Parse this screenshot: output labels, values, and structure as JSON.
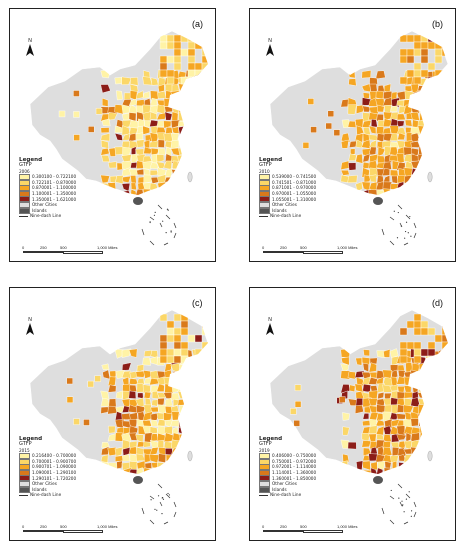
{
  "colors": {
    "class1": "#fff3a6",
    "class2": "#fbd768",
    "class3": "#f5a623",
    "class4": "#d9791b",
    "class5": "#8c1d18",
    "other": "#dedede",
    "islands": "#555555",
    "border": "#ffffff"
  },
  "north_label": "N",
  "other_label": "Other Cities",
  "islands_label": "Islands",
  "line_label": "Nine-dash Line",
  "scale_ticks": [
    "0",
    "250",
    "500",
    "1,000 Miles"
  ],
  "panels": [
    {
      "label": "(a)",
      "legend_title": "Legend",
      "legend_sub": "GTFP",
      "year": "2006",
      "classes": [
        "0.300100 - 0.722100",
        "0.722101 - 0.870000",
        "0.870001 - 1.100000",
        "1.100001 - 1.350000",
        "1.350001 - 1.621000"
      ]
    },
    {
      "label": "(b)",
      "legend_title": "Legend",
      "legend_sub": "GTFP",
      "year": "2010",
      "classes": [
        "0.539000 - 0.741500",
        "0.741501 - 0.871000",
        "0.871001 - 0.970000",
        "0.970001 - 1.055000",
        "1.055001 - 1.310000"
      ]
    },
    {
      "label": "(c)",
      "legend_title": "Legend",
      "legend_sub": "GTFP",
      "year": "2015",
      "classes": [
        "0.216400 - 0.700000",
        "0.700001 - 0.900700",
        "0.900701 - 1.090000",
        "1.090001 - 1.290100",
        "1.290101 - 1.720200"
      ]
    },
    {
      "label": "(d)",
      "legend_title": "Legend",
      "legend_sub": "GTFP",
      "year": "2019",
      "classes": [
        "0.406000 - 0.750000",
        "0.750001 - 0.972000",
        "0.972001 - 1.114000",
        "1.114001 - 1.360000",
        "1.360001 - 1.850000"
      ]
    }
  ]
}
